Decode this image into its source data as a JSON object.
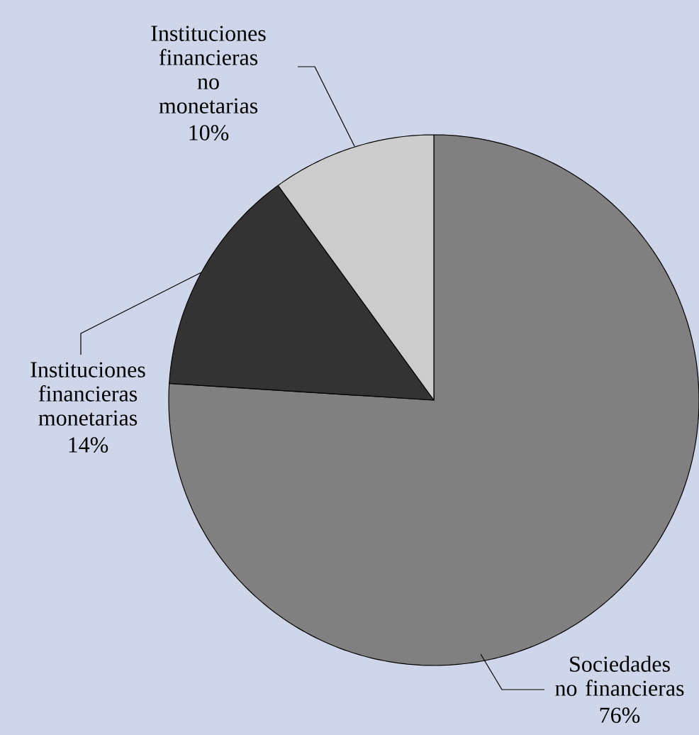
{
  "chart_data": {
    "type": "pie",
    "categories": [
      "Sociedades no financieras",
      "Instituciones financieras monetarias",
      "Instituciones financieras no monetarias"
    ],
    "values": [
      76,
      14,
      10
    ],
    "colors": [
      "#808080",
      "#333333",
      "#cccccc"
    ],
    "value_labels": [
      "76%",
      "14%",
      "10%"
    ]
  }
}
